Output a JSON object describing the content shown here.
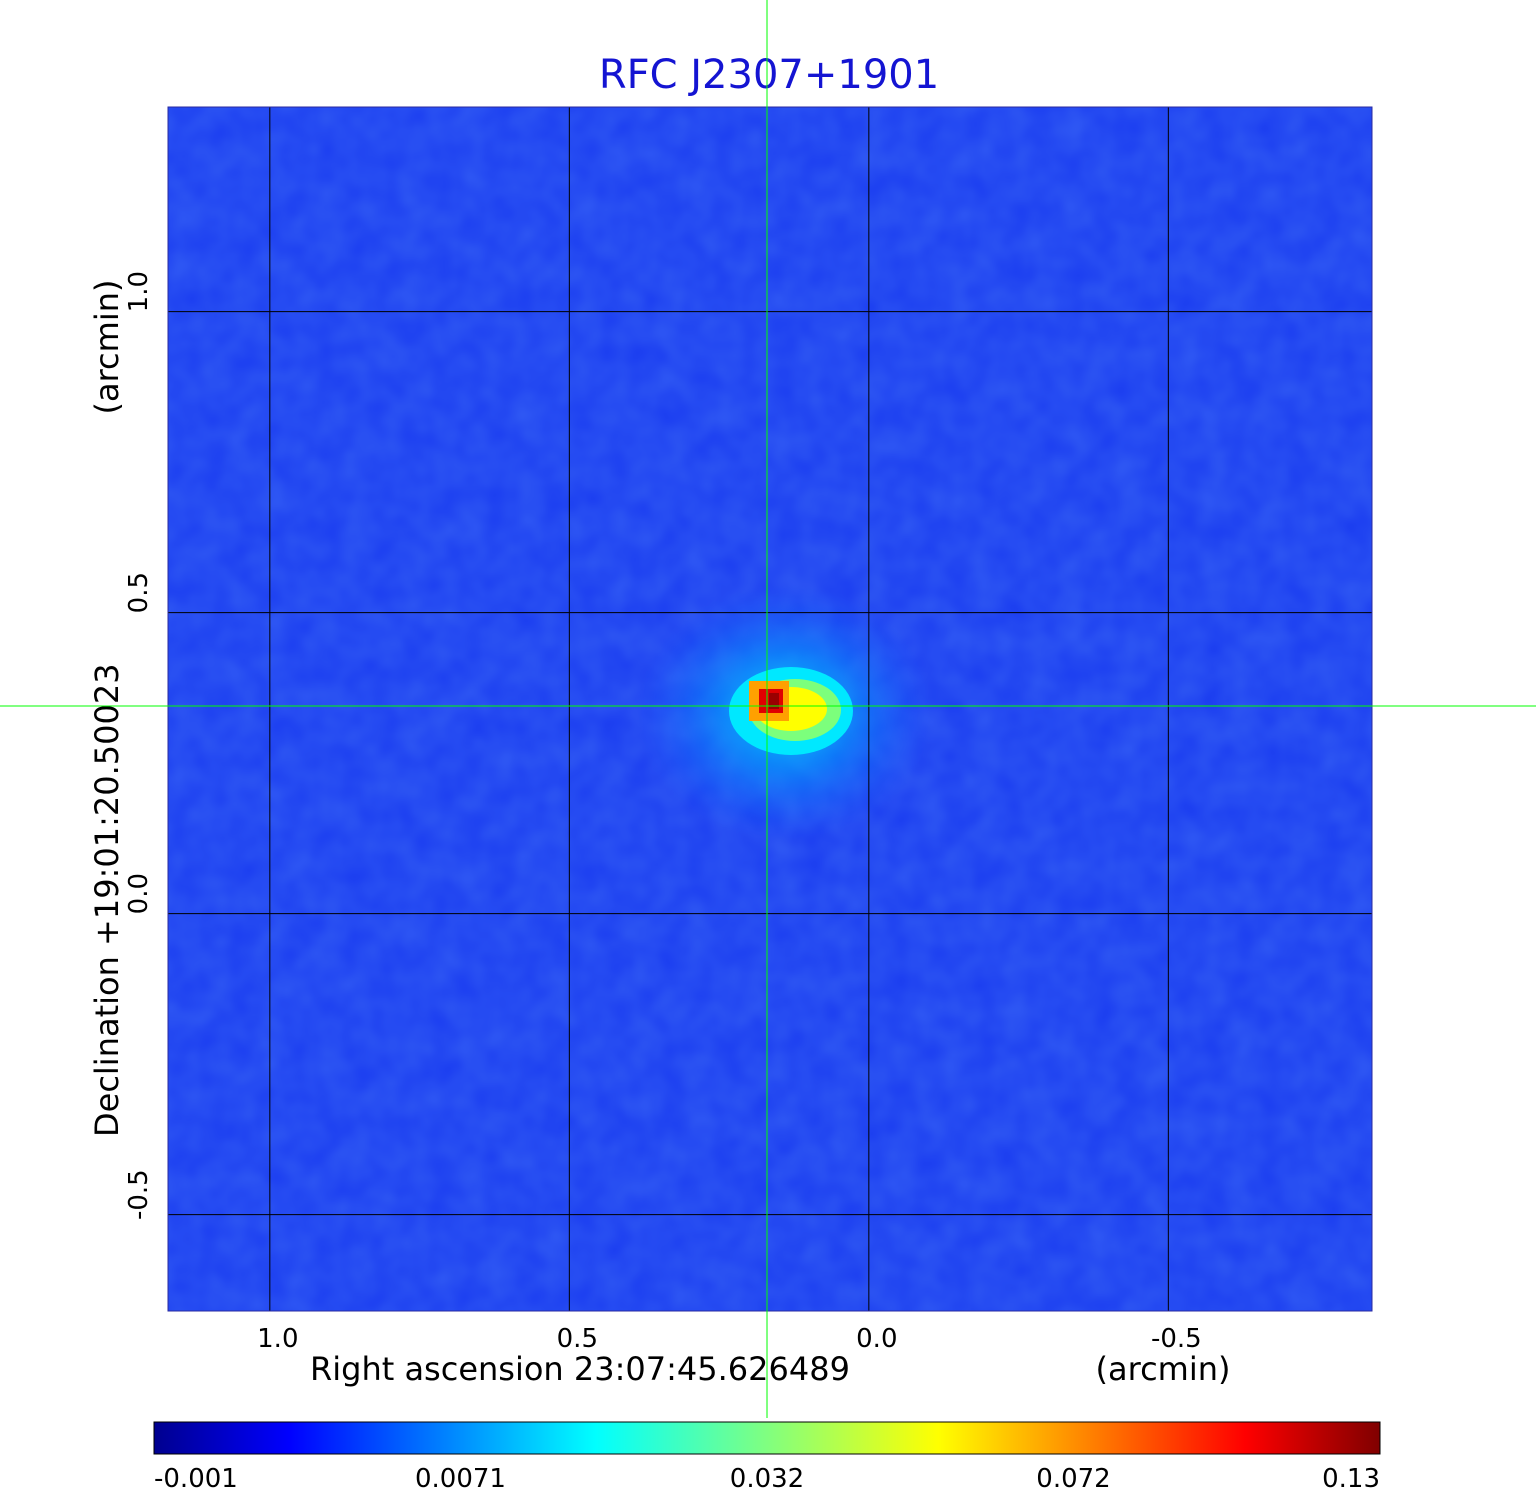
{
  "chart_data": {
    "type": "heatmap",
    "title": "RFC J2307+1901",
    "xlabel": "Right ascension  23:07:45.626489",
    "xlabel_unit": "(arcmin)",
    "ylabel": "Declination  +19:01:20.50023",
    "ylabel_unit": "(arcmin)",
    "colormap": "jet",
    "x_ticks": [
      {
        "value": 1.0,
        "label": "1.0"
      },
      {
        "value": 0.5,
        "label": "0.5"
      },
      {
        "value": 0.0,
        "label": "0.0"
      },
      {
        "value": -0.5,
        "label": "-0.5"
      }
    ],
    "y_ticks": [
      {
        "value": 1.0,
        "label": "1.0"
      },
      {
        "value": 0.5,
        "label": "0.5"
      },
      {
        "value": 0.0,
        "label": "0.0"
      },
      {
        "value": -0.5,
        "label": "-0.5"
      }
    ],
    "xlim": [
      1.17,
      -0.84
    ],
    "ylim": [
      -0.66,
      1.34
    ],
    "grid": true,
    "crosshair": {
      "x": 0.17,
      "y": 0.345,
      "color": "#00ff00"
    },
    "source_peak": {
      "x": 0.16,
      "y": 0.35,
      "value": 0.13
    },
    "colorbar": {
      "ticks": [
        {
          "label": "-0.001",
          "value": -0.001
        },
        {
          "label": "0.0071",
          "value": 0.0071
        },
        {
          "label": "0.032",
          "value": 0.032
        },
        {
          "label": "0.072",
          "value": 0.072
        },
        {
          "label": "0.13",
          "value": 0.13
        }
      ]
    },
    "colors": {
      "background_field": "#1a3cf0",
      "grid": "#000000",
      "crosshair": "#00ff00",
      "title": "#1414d2"
    }
  }
}
